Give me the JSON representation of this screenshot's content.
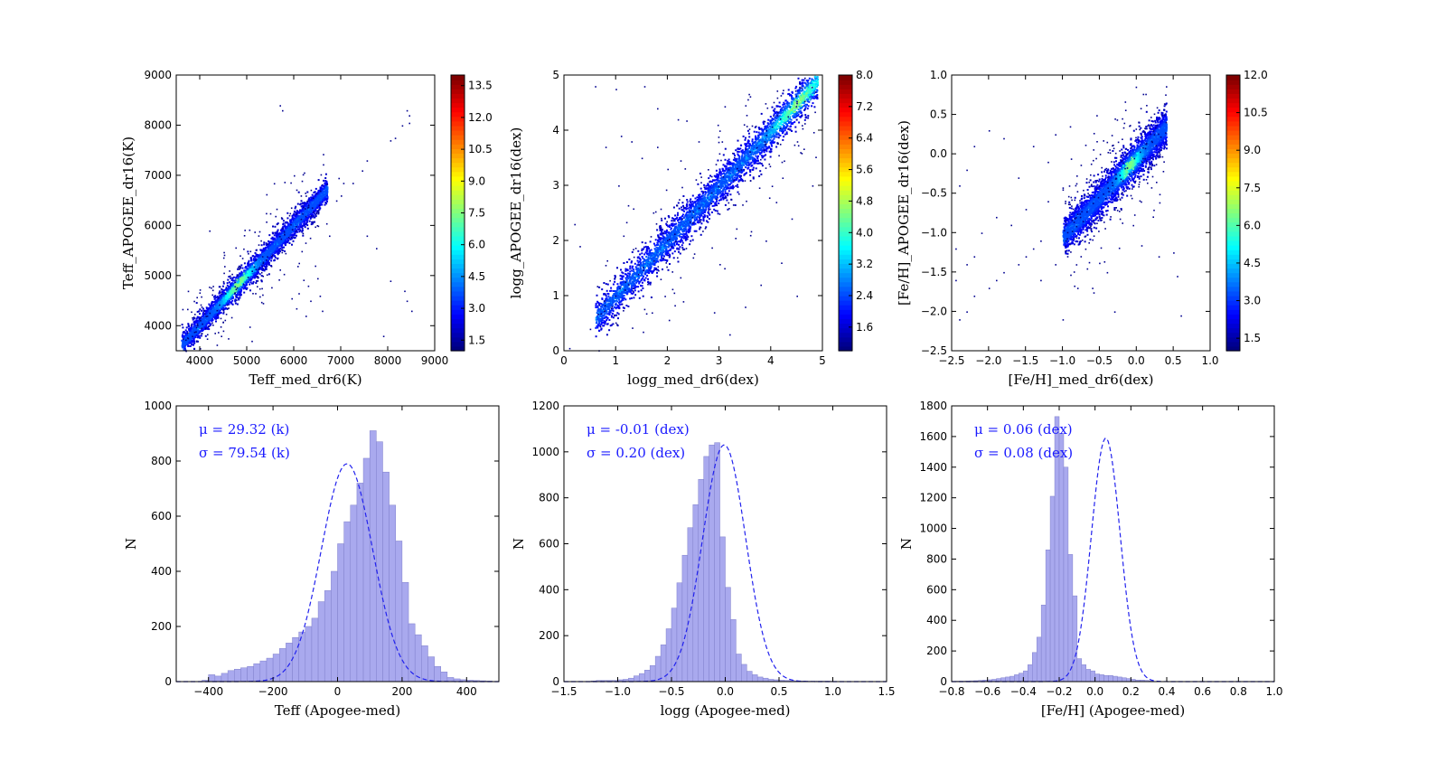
{
  "chart_data": [
    {
      "type": "heatmap",
      "id": "p1",
      "xlabel": "Teff_med_dr6(K)",
      "ylabel": "Teff_APOGEE_dr16(K)",
      "xlim": [
        3500,
        9000
      ],
      "ylim": [
        3500,
        9000
      ],
      "xticks": [
        4000,
        5000,
        6000,
        7000,
        8000,
        9000
      ],
      "yticks": [
        4000,
        5000,
        6000,
        7000,
        8000,
        9000
      ],
      "colorbar": {
        "min": 1.0,
        "max": 14.0,
        "ticks": [
          "1.5",
          "3.0",
          "4.5",
          "6.0",
          "7.5",
          "9.0",
          "10.5",
          "12.0",
          "13.5"
        ],
        "colormap": "jet"
      },
      "relation": {
        "x0": 3600,
        "x1": 6700,
        "slope": 1.0,
        "offset": 30,
        "scatter": 150,
        "density_peak_x": 4800
      },
      "outliers": [
        [
          8400,
          8300
        ],
        [
          8450,
          8200
        ],
        [
          8450,
          8050
        ],
        [
          8300,
          8000
        ],
        [
          8150,
          7750
        ],
        [
          8050,
          7700
        ],
        [
          7550,
          7300
        ],
        [
          7450,
          7100
        ],
        [
          7250,
          6850
        ],
        [
          7050,
          6850
        ],
        [
          6950,
          6950
        ],
        [
          7000,
          6600
        ],
        [
          6900,
          6500
        ],
        [
          6500,
          4950
        ],
        [
          6550,
          4600
        ],
        [
          6350,
          4500
        ],
        [
          6250,
          4200
        ],
        [
          6050,
          4350
        ],
        [
          5950,
          4550
        ],
        [
          6300,
          4800
        ],
        [
          6450,
          5200
        ],
        [
          8050,
          4900
        ],
        [
          8350,
          4700
        ],
        [
          8400,
          4500
        ],
        [
          8500,
          4300
        ],
        [
          7900,
          3800
        ],
        [
          5100,
          3700
        ],
        [
          4600,
          3750
        ],
        [
          4450,
          3800
        ],
        [
          4200,
          5900
        ],
        [
          5700,
          8400
        ],
        [
          5750,
          8300
        ],
        [
          6100,
          4650
        ],
        [
          6600,
          4300
        ],
        [
          7550,
          5800
        ],
        [
          7750,
          5550
        ],
        [
          6750,
          5800
        ]
      ]
    },
    {
      "type": "heatmap",
      "id": "p2",
      "xlabel": "logg_med_dr6(dex)",
      "ylabel": "logg_APOGEE_dr16(dex)",
      "xlim": [
        0,
        5
      ],
      "ylim": [
        0,
        5
      ],
      "xticks": [
        0,
        1,
        2,
        3,
        4,
        5
      ],
      "yticks": [
        0,
        1,
        2,
        3,
        4,
        5
      ],
      "colorbar": {
        "min": 1.0,
        "max": 8.0,
        "ticks": [
          "1.6",
          "2.4",
          "3.2",
          "4.0",
          "4.8",
          "5.6",
          "6.4",
          "7.2",
          "8.0"
        ],
        "colormap": "jet"
      },
      "relation": {
        "x0": 0.6,
        "x1": 4.9,
        "slope": 1.0,
        "offset": 0.0,
        "scatter": 0.22,
        "density_peak_x": 4.5
      },
      "outliers": [
        [
          0.6,
          4.8
        ],
        [
          1.0,
          4.75
        ],
        [
          1.55,
          4.8
        ],
        [
          1.8,
          4.4
        ],
        [
          2.2,
          4.2
        ],
        [
          1.1,
          3.9
        ],
        [
          1.3,
          3.8
        ],
        [
          0.8,
          3.7
        ],
        [
          1.5,
          3.5
        ],
        [
          2.0,
          3.3
        ],
        [
          0.2,
          2.3
        ],
        [
          0.3,
          1.9
        ],
        [
          1.05,
          3.0
        ],
        [
          3.2,
          0.3
        ],
        [
          3.5,
          0.8
        ],
        [
          3.8,
          1.2
        ],
        [
          4.2,
          1.6
        ],
        [
          4.5,
          1.0
        ],
        [
          4.8,
          3.0
        ],
        [
          2.3,
          0.9
        ],
        [
          2.9,
          0.7
        ],
        [
          3.9,
          2.0
        ],
        [
          4.4,
          2.4
        ],
        [
          0.1,
          0.05
        ],
        [
          0.5,
          0.4
        ],
        [
          1.8,
          3.7
        ],
        [
          2.6,
          3.8
        ],
        [
          3.1,
          1.5
        ],
        [
          3.6,
          2.1
        ],
        [
          4.1,
          2.7
        ]
      ]
    },
    {
      "type": "heatmap",
      "id": "p3",
      "xlabel": "[Fe/H]_med_dr6(dex)",
      "ylabel": "[Fe/H]_APOGEE_dr16(dex)",
      "xlim": [
        -2.5,
        1.0
      ],
      "ylim": [
        -2.5,
        1.0
      ],
      "xticks": [
        -2.5,
        -2.0,
        -1.5,
        -1.0,
        -0.5,
        0.0,
        0.5,
        1.0
      ],
      "xticklabels": [
        "−2.5",
        "−2.0",
        "−1.5",
        "−1.0",
        "−0.5",
        "0.0",
        "0.5",
        "1.0"
      ],
      "yticks": [
        -2.5,
        -2.0,
        -1.5,
        -1.0,
        -0.5,
        0.0,
        0.5,
        1.0
      ],
      "yticklabels": [
        "−2.5",
        "−2.0",
        "−1.5",
        "−1.0",
        "−0.5",
        "0.0",
        "0.5",
        "1.0"
      ],
      "colorbar": {
        "min": 1.0,
        "max": 12.0,
        "ticks": [
          "1.5",
          "3.0",
          "4.5",
          "6.0",
          "7.5",
          "9.0",
          "10.5",
          "12.0"
        ],
        "colormap": "jet"
      },
      "relation": {
        "x0": -1.0,
        "x1": 0.4,
        "slope": 1.0,
        "offset": -0.05,
        "scatter": 0.15,
        "density_peak_x": -0.1
      },
      "outliers": [
        [
          -2.4,
          -2.1
        ],
        [
          -2.3,
          -2.0
        ],
        [
          -2.2,
          -1.8
        ],
        [
          -2.0,
          -1.7
        ],
        [
          -1.9,
          -1.6
        ],
        [
          -1.8,
          -1.5
        ],
        [
          -1.6,
          -1.4
        ],
        [
          -1.5,
          -1.3
        ],
        [
          -1.4,
          -1.2
        ],
        [
          -1.3,
          -1.1
        ],
        [
          -2.4,
          -0.4
        ],
        [
          -2.3,
          -0.2
        ],
        [
          -2.2,
          0.1
        ],
        [
          -2.0,
          0.3
        ],
        [
          -1.8,
          0.2
        ],
        [
          -1.6,
          -0.3
        ],
        [
          -1.4,
          0.1
        ],
        [
          -1.2,
          -0.1
        ],
        [
          -2.45,
          -1.2
        ],
        [
          -2.3,
          -1.4
        ],
        [
          -2.1,
          -1.0
        ],
        [
          -1.9,
          -0.8
        ],
        [
          -1.7,
          -0.9
        ],
        [
          -1.5,
          -0.7
        ],
        [
          -1.2,
          -0.6
        ],
        [
          -0.8,
          -1.7
        ],
        [
          -0.6,
          -1.7
        ],
        [
          -0.3,
          -2.0
        ],
        [
          0.3,
          -1.3
        ],
        [
          0.5,
          -1.25
        ],
        [
          0.55,
          -1.55
        ],
        [
          0.6,
          -2.05
        ],
        [
          -1.0,
          -2.1
        ],
        [
          -0.4,
          -1.5
        ],
        [
          -2.45,
          -1.6
        ],
        [
          -2.2,
          -1.3
        ],
        [
          -1.1,
          0.25
        ],
        [
          -0.9,
          0.35
        ],
        [
          -1.3,
          -1.6
        ],
        [
          -1.1,
          -1.4
        ]
      ]
    },
    {
      "type": "bar",
      "id": "p4",
      "xlabel": "Teff (Apogee-med)",
      "ylabel": "N",
      "xlim": [
        -500,
        500
      ],
      "ylim": [
        0,
        1000
      ],
      "xticks": [
        -400,
        -200,
        0,
        200,
        400
      ],
      "xticklabels": [
        "−400",
        "−200",
        "0",
        "200",
        "400"
      ],
      "yticks": [
        0,
        200,
        400,
        600,
        800,
        1000
      ],
      "bin_start": -420,
      "bin_width": 20,
      "values": [
        5,
        25,
        20,
        30,
        40,
        45,
        50,
        55,
        65,
        75,
        85,
        100,
        120,
        140,
        160,
        180,
        200,
        230,
        290,
        330,
        400,
        500,
        580,
        640,
        720,
        810,
        910,
        870,
        760,
        640,
        510,
        360,
        210,
        170,
        130,
        90,
        55,
        35,
        15,
        10,
        7,
        5,
        4,
        3,
        2
      ],
      "gaussian": {
        "mu": 29.32,
        "sigma": 79.54,
        "peak": 790
      },
      "annotations": [
        "μ = 29.32 (k)",
        "σ = 79.54 (k)"
      ]
    },
    {
      "type": "bar",
      "id": "p5",
      "xlabel": "logg (Apogee-med)",
      "ylabel": "N",
      "xlim": [
        -1.5,
        1.5
      ],
      "ylim": [
        0,
        1200
      ],
      "xticks": [
        -1.5,
        -1.0,
        -0.5,
        0.0,
        0.5,
        1.0,
        1.5
      ],
      "xticklabels": [
        "−1.5",
        "−1.0",
        "−0.5",
        "0.0",
        "0.5",
        "1.0",
        "1.5"
      ],
      "yticks": [
        0,
        200,
        400,
        600,
        800,
        1000,
        1200
      ],
      "bin_start": -1.25,
      "bin_width": 0.05,
      "values": [
        3,
        5,
        5,
        5,
        5,
        8,
        10,
        15,
        25,
        35,
        50,
        70,
        110,
        160,
        230,
        320,
        430,
        550,
        670,
        770,
        880,
        980,
        1030,
        1040,
        630,
        410,
        270,
        120,
        75,
        45,
        30,
        20,
        15,
        10,
        8,
        6,
        5,
        4,
        3,
        3,
        2,
        2,
        2,
        2,
        2,
        1,
        1,
        1
      ],
      "gaussian": {
        "mu": -0.01,
        "sigma": 0.2,
        "peak": 1030
      },
      "annotations": [
        "μ = -0.01 (dex)",
        "σ = 0.20 (dex)"
      ]
    },
    {
      "type": "bar",
      "id": "p6",
      "xlabel": "[Fe/H] (Apogee-med)",
      "ylabel": "N",
      "xlim": [
        -0.8,
        1.0
      ],
      "ylim": [
        0,
        1800
      ],
      "xticks": [
        -0.8,
        -0.6,
        -0.4,
        -0.2,
        0.0,
        0.2,
        0.4,
        0.6,
        0.8,
        1.0
      ],
      "xticklabels": [
        "−0.8",
        "−0.6",
        "−0.4",
        "−0.2",
        "0.0",
        "0.2",
        "0.4",
        "0.6",
        "0.8",
        "1.0"
      ],
      "yticks": [
        0,
        200,
        400,
        600,
        800,
        1000,
        1200,
        1400,
        1600,
        1800
      ],
      "bin_start": -0.8,
      "bin_width": 0.025,
      "values": [
        2,
        3,
        3,
        4,
        5,
        6,
        8,
        10,
        12,
        15,
        20,
        25,
        30,
        35,
        45,
        55,
        70,
        110,
        190,
        290,
        500,
        860,
        1210,
        1730,
        1620,
        1400,
        830,
        560,
        150,
        110,
        80,
        70,
        50,
        45,
        40,
        40,
        35,
        30,
        25,
        20,
        15,
        10,
        10,
        8,
        5
      ],
      "gaussian": {
        "mu": 0.06,
        "sigma": 0.08,
        "peak": 1590
      },
      "annotations": [
        "μ = 0.06 (dex)",
        "σ = 0.08 (dex)"
      ]
    }
  ]
}
